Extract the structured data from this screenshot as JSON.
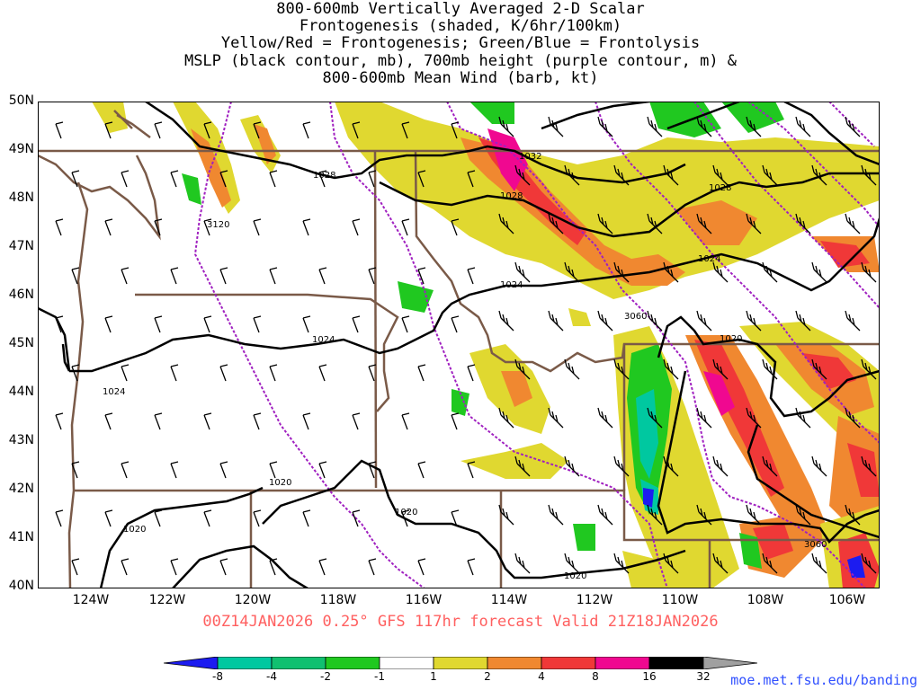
{
  "title": {
    "line1": "800-600mb Vertically Averaged 2-D Scalar",
    "line2": "Frontogenesis (shaded, K/6hr/100km)",
    "line3": "Yellow/Red = Frontogenesis;  Green/Blue = Frontolysis",
    "line4": "MSLP (black contour, mb), 700mb height (purple contour, m) &",
    "line5": "800-600mb Mean Wind (barb, kt)"
  },
  "axes": {
    "lat_labels": [
      "50N",
      "49N",
      "48N",
      "47N",
      "46N",
      "45N",
      "44N",
      "43N",
      "42N",
      "41N",
      "40N"
    ],
    "lon_labels": [
      "124W",
      "122W",
      "120W",
      "118W",
      "116W",
      "114W",
      "112W",
      "110W",
      "108W",
      "106W"
    ]
  },
  "contour_labels": {
    "mslp": [
      "1032",
      "1028",
      "1028",
      "1028",
      "1024",
      "1024",
      "1024",
      "1024",
      "1020",
      "1020",
      "1020",
      "1020",
      "1020"
    ],
    "height": [
      "3120",
      "3060",
      "3060"
    ]
  },
  "footer": "00Z14JAN2026 0.25° GFS 117hr forecast Valid 21Z18JAN2026",
  "colorbar": {
    "labels": [
      "-8",
      "-4",
      "-2",
      "-1",
      "1",
      "2",
      "4",
      "8",
      "16",
      "32"
    ],
    "colors": [
      "#1c1cf0",
      "#00c8a0",
      "#10c070",
      "#20c820",
      "#ffffff",
      "#e0d830",
      "#f08830",
      "#f03838",
      "#f00890",
      "#000000",
      "#a0a0a0"
    ]
  },
  "url": "moe.met.fsu.edu/banding"
}
